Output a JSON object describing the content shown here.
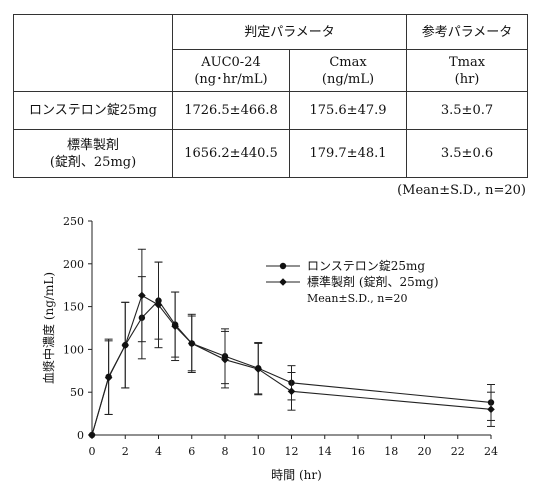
{
  "table": {
    "group_headers": [
      "判定パラメータ",
      "参考パラメータ"
    ],
    "columns": [
      {
        "main": "AUC0-24",
        "unit": "(ng･hr/mL)"
      },
      {
        "main": "Cmax",
        "unit": "(ng/mL)"
      },
      {
        "main": "Tmax",
        "unit": "(hr)"
      }
    ],
    "rows": [
      {
        "label_lines": [
          "ロンステロン錠25mg"
        ],
        "auc": "1726.5±466.8",
        "cmax": "175.6±47.9",
        "tmax": "3.5±0.7"
      },
      {
        "label_lines": [
          "標準製剤",
          "(錠剤、25mg)"
        ],
        "auc": "1656.2±440.5",
        "cmax": "179.7±48.1",
        "tmax": "3.5±0.6"
      }
    ],
    "note": "(Mean±S.D., n=20)"
  },
  "chart_data": {
    "type": "line",
    "xlabel": "時間 (hr)",
    "ylabel": "血漿中濃度 (ng/mL)",
    "xlim": [
      0,
      24
    ],
    "ylim": [
      0,
      250
    ],
    "xticks": [
      0,
      2,
      4,
      6,
      8,
      10,
      12,
      14,
      16,
      18,
      20,
      22,
      24
    ],
    "yticks": [
      0,
      50,
      100,
      150,
      200,
      250
    ],
    "x": [
      0,
      1,
      2,
      3,
      4,
      5,
      6,
      8,
      10,
      12,
      24
    ],
    "series": [
      {
        "name": "ロンステロン錠25mg",
        "marker": "circle",
        "values": [
          0,
          68,
          105,
          137,
          157,
          129,
          107,
          92,
          78,
          61,
          38
        ],
        "sd": [
          0,
          44,
          50,
          48,
          45,
          38,
          32,
          32,
          30,
          20,
          21
        ]
      },
      {
        "name": "標準製剤 (錠剤、25mg)",
        "marker": "diamond",
        "values": [
          0,
          67,
          105,
          163,
          152,
          127,
          107,
          88,
          77,
          51,
          30
        ],
        "sd": [
          0,
          43,
          50,
          54,
          50,
          40,
          34,
          33,
          30,
          22,
          20
        ]
      }
    ],
    "legend_note": "Mean±S.D., n=20",
    "legend_position": "top-right",
    "grid": false
  }
}
